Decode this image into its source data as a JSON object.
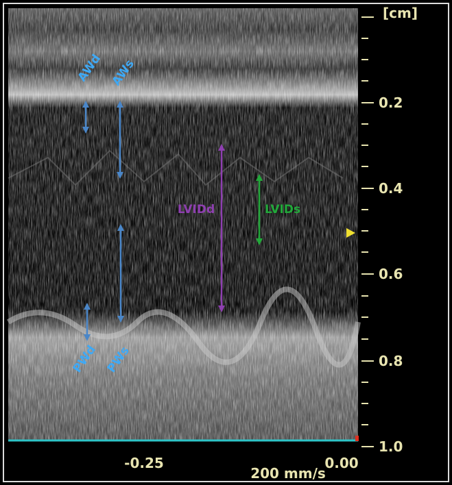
{
  "scale": {
    "unit": "[cm]",
    "depth_labels": [
      "0.2",
      "0.4",
      "0.6",
      "0.8",
      "1.0"
    ],
    "time_labels": [
      "-0.25",
      "0.00"
    ],
    "sweep_speed": "200 mm/s"
  },
  "annotations": {
    "awd": "AWd",
    "aws": "AWs",
    "lvidd": "LVIDd",
    "lvids": "LVIDs",
    "pwd": "PWd",
    "pws": "PWs"
  }
}
